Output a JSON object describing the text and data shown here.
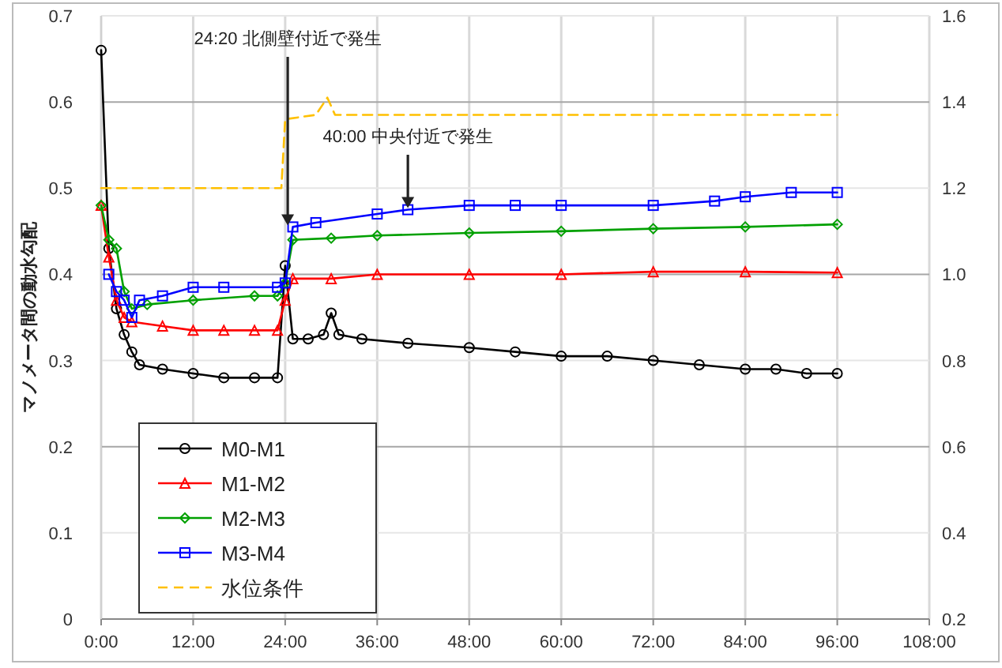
{
  "chart_data": {
    "type": "line",
    "ylabel": "マノメータ間の動水勾配",
    "xlim": [
      0,
      108
    ],
    "xticks": [
      {
        "value": 0,
        "label": "0:00"
      },
      {
        "value": 12,
        "label": "12:00"
      },
      {
        "value": 24,
        "label": "24:00"
      },
      {
        "value": 36,
        "label": "36:00"
      },
      {
        "value": 48,
        "label": "48:00"
      },
      {
        "value": 60,
        "label": "60:00"
      },
      {
        "value": 72,
        "label": "72:00"
      },
      {
        "value": 84,
        "label": "84:00"
      },
      {
        "value": 96,
        "label": "96:00"
      },
      {
        "value": 108,
        "label": "108:00"
      }
    ],
    "ylim": [
      0,
      0.7
    ],
    "yticks": [
      0,
      0.1,
      0.2,
      0.3,
      0.4,
      0.5,
      0.6,
      0.7
    ],
    "y2lim": [
      0.2,
      1.6
    ],
    "y2ticks": [
      {
        "value": 0.2,
        "label": "0.2"
      },
      {
        "value": 0.4,
        "label": "0.4"
      },
      {
        "value": 0.6,
        "label": "0.6"
      },
      {
        "value": 0.8,
        "label": "0.8"
      },
      {
        "value": 1.0,
        "label": "1.0"
      },
      {
        "value": 1.2,
        "label": "1.2"
      },
      {
        "value": 1.4,
        "label": "1.4"
      },
      {
        "value": 1.6,
        "label": "1.6"
      }
    ],
    "grid": true,
    "legend": "bottom left",
    "series": [
      {
        "name": "M0-M1",
        "color": "#000000",
        "marker": "circle",
        "x": [
          0,
          1,
          2,
          3,
          4,
          5,
          8,
          12,
          16,
          20,
          23,
          24,
          25,
          27,
          29,
          30,
          31,
          34,
          40,
          48,
          54,
          60,
          66,
          72,
          78,
          84,
          88,
          92,
          96
        ],
        "values": [
          0.66,
          0.43,
          0.36,
          0.33,
          0.31,
          0.295,
          0.29,
          0.285,
          0.28,
          0.28,
          0.28,
          0.41,
          0.325,
          0.325,
          0.33,
          0.355,
          0.33,
          0.325,
          0.32,
          0.315,
          0.31,
          0.305,
          0.305,
          0.3,
          0.295,
          0.29,
          0.29,
          0.285,
          0.285
        ]
      },
      {
        "name": "M1-M2",
        "color": "#ff0000",
        "marker": "triangle",
        "x": [
          0,
          1,
          2,
          3,
          4,
          8,
          12,
          16,
          20,
          23,
          24,
          25,
          30,
          36,
          48,
          60,
          72,
          84,
          96
        ],
        "values": [
          0.48,
          0.42,
          0.37,
          0.35,
          0.345,
          0.34,
          0.335,
          0.335,
          0.335,
          0.335,
          0.37,
          0.395,
          0.395,
          0.4,
          0.4,
          0.4,
          0.403,
          0.403,
          0.402
        ]
      },
      {
        "name": "M2-M3",
        "color": "#00a000",
        "marker": "diamond",
        "x": [
          0,
          1,
          2,
          3,
          4,
          6,
          12,
          20,
          23,
          24,
          25,
          30,
          36,
          48,
          60,
          72,
          84,
          96
        ],
        "values": [
          0.48,
          0.44,
          0.43,
          0.38,
          0.36,
          0.365,
          0.37,
          0.375,
          0.375,
          0.39,
          0.44,
          0.442,
          0.445,
          0.448,
          0.45,
          0.453,
          0.455,
          0.458
        ]
      },
      {
        "name": "M3-M4",
        "color": "#0000ff",
        "marker": "square",
        "x": [
          1,
          2,
          3,
          4,
          5,
          8,
          12,
          16,
          23,
          24,
          25,
          28,
          36,
          40,
          48,
          54,
          60,
          72,
          80,
          84,
          90,
          96
        ],
        "values": [
          0.4,
          0.38,
          0.37,
          0.35,
          0.37,
          0.375,
          0.385,
          0.385,
          0.385,
          0.39,
          0.455,
          0.46,
          0.47,
          0.475,
          0.48,
          0.48,
          0.48,
          0.48,
          0.485,
          0.49,
          0.495,
          0.495
        ]
      },
      {
        "name": "水位条件",
        "color": "#ffc000",
        "axis": "y2",
        "marker": "none",
        "line_style": "dashed",
        "x": [
          0,
          23.5,
          24,
          28,
          29.5,
          30.5,
          36,
          48,
          60,
          72,
          84,
          96
        ],
        "values": [
          1.2,
          1.2,
          1.36,
          1.37,
          1.41,
          1.37,
          1.37,
          1.37,
          1.37,
          1.37,
          1.37,
          1.37
        ]
      }
    ],
    "annotations": [
      {
        "text": "24:20 北側壁付近で発生",
        "x": 24.33,
        "y": 0.455
      },
      {
        "text": "40:00 中央付近で発生",
        "x": 40,
        "y": 0.475
      }
    ]
  }
}
